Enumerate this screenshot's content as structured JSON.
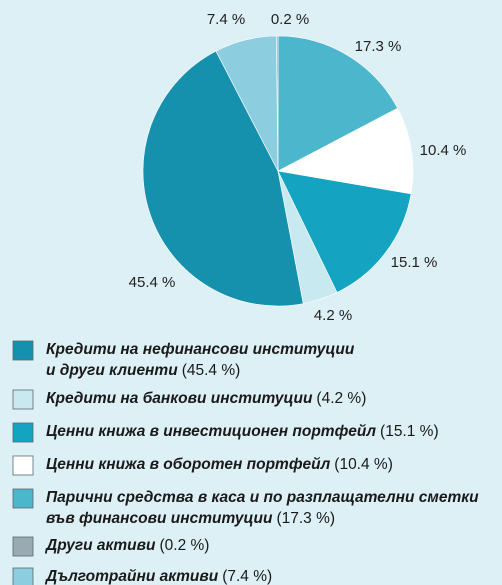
{
  "chart_data": {
    "type": "pie",
    "categories": [
      [
        "Кредити на нефинансови институции",
        "и други клиенти"
      ],
      [
        "Кредити на банкови институции"
      ],
      [
        "Ценни книжа в инвестиционен портфейл"
      ],
      [
        "Ценни книжа в оборотен портфейл"
      ],
      [
        "Парични средства в каса и по разплащателни сметки",
        "във финансови институции"
      ],
      [
        "Други активи"
      ],
      [
        "Дълготрайни активи"
      ]
    ],
    "values": [
      45.4,
      4.2,
      15.1,
      10.4,
      17.3,
      0.2,
      7.4
    ],
    "value_labels": [
      "45.4 %",
      "4.2 %",
      "15.1 %",
      "10.4 %",
      "17.3 %",
      "0.2 %",
      "7.4 %"
    ],
    "legend_value_labels": [
      "(45.4 %)",
      "(4.2 %)",
      "(15.1 %)",
      "(10.4 %)",
      "(17.3 %)",
      "(0.2 %)",
      "(7.4 %)"
    ],
    "colors": [
      "#1591ae",
      "#c9e9f1",
      "#14a3c0",
      "#ffffff",
      "#4cb6cd",
      "#9aaab3",
      "#8dcde0"
    ],
    "direction": "counterclockwise"
  }
}
